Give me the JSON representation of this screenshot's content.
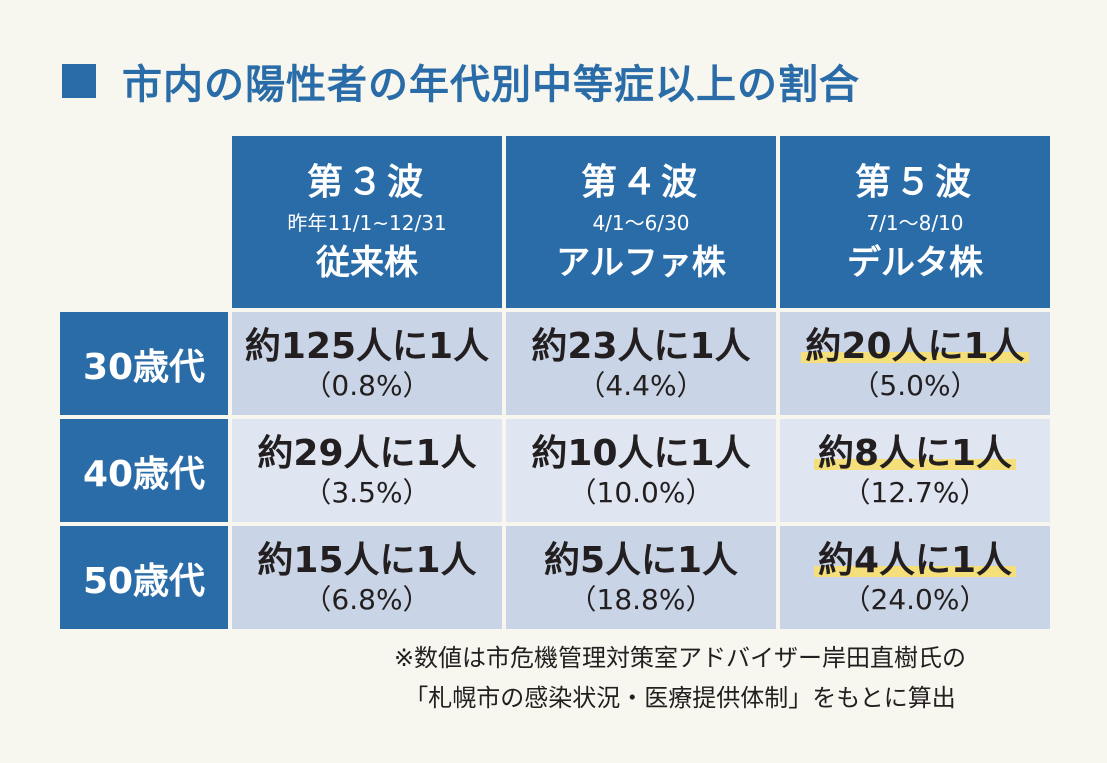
{
  "title": "市内の陽性者の年代別中等症以上の割合",
  "chart_data": {
    "type": "table",
    "columns": [
      {
        "wave": "第３波",
        "period": "昨年11/1~12/31",
        "strain": "従来株"
      },
      {
        "wave": "第４波",
        "period": "4/1～6/30",
        "strain": "アルファ株"
      },
      {
        "wave": "第５波",
        "period": "7/1～8/10",
        "strain": "デルタ株"
      }
    ],
    "rows": [
      {
        "age": "30歳代",
        "cells": [
          {
            "ratio": "約125人に1人",
            "pct": "（0.8%）"
          },
          {
            "ratio": "約23人に1人",
            "pct": "（4.4%）"
          },
          {
            "ratio": "約20人に1人",
            "pct": "（5.0%）"
          }
        ]
      },
      {
        "age": "40歳代",
        "cells": [
          {
            "ratio": "約29人に1人",
            "pct": "（3.5%）"
          },
          {
            "ratio": "約10人に1人",
            "pct": "（10.0%）"
          },
          {
            "ratio": "約8人に1人",
            "pct": "（12.7%）"
          }
        ]
      },
      {
        "age": "50歳代",
        "cells": [
          {
            "ratio": "約15人に1人",
            "pct": "（6.8%）"
          },
          {
            "ratio": "約5人に1人",
            "pct": "（18.8%）"
          },
          {
            "ratio": "約4人に1人",
            "pct": "（24.0%）"
          }
        ]
      }
    ],
    "highlight_column": 2
  },
  "note": {
    "line1": "※数値は市危機管理対策室アドバイザー岸田直樹氏の",
    "line2": "「札幌市の感染状況・医療提供体制」をもとに算出"
  },
  "colors": {
    "header_bg": "#2a6ca8",
    "cell_bg": "#c9d5e6",
    "cell_bg_alt": "#dfe6f1",
    "highlight": "#f4df7a"
  }
}
